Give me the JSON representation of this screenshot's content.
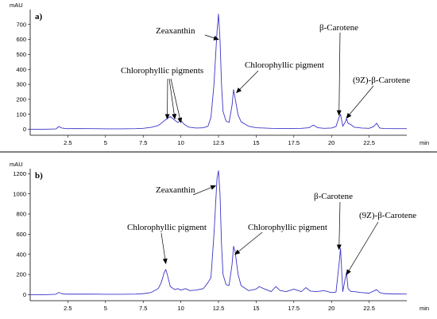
{
  "chart_data": [
    {
      "type": "line",
      "panel_label": "a)",
      "ylabel": "mAU",
      "xlabel": "min",
      "xlim": [
        0,
        25
      ],
      "ylim": [
        -40,
        800
      ],
      "x_ticks": [
        2.5,
        5,
        7.5,
        10,
        12.5,
        15,
        17.5,
        20,
        22.5
      ],
      "x_tick_labels": [
        "2.5",
        "5",
        "7.5",
        "10",
        "12.5",
        "15",
        "17.5",
        "20",
        "22.5"
      ],
      "y_ticks": [
        0,
        100,
        200,
        300,
        400,
        500,
        600,
        700
      ],
      "y_tick_labels": [
        "0",
        "100",
        "200",
        "300",
        "400",
        "500",
        "600",
        "700"
      ],
      "series": [
        {
          "color": "#3b35c8",
          "x": [
            0.0,
            1.0,
            1.7,
            1.9,
            2.1,
            2.4,
            3.0,
            4.0,
            5.0,
            6.0,
            7.0,
            7.5,
            8.0,
            8.5,
            8.8,
            9.0,
            9.3,
            9.6,
            9.8,
            10.0,
            10.2,
            10.5,
            11.0,
            11.5,
            11.8,
            12.0,
            12.2,
            12.4,
            12.5,
            12.6,
            12.7,
            12.8,
            13.0,
            13.2,
            13.4,
            13.5,
            13.6,
            13.8,
            14.0,
            14.5,
            15.0,
            16.0,
            17.0,
            18.0,
            18.5,
            18.8,
            19.1,
            19.5,
            20.0,
            20.3,
            20.5,
            20.6,
            20.75,
            20.9,
            21.0,
            21.1,
            21.3,
            21.5,
            22.0,
            22.5,
            22.8,
            23.0,
            23.2,
            23.5,
            24.0,
            25.0
          ],
          "y": [
            0,
            0,
            2,
            18,
            8,
            4,
            5,
            4,
            3,
            3,
            4,
            6,
            12,
            25,
            48,
            65,
            85,
            60,
            45,
            60,
            35,
            15,
            8,
            10,
            20,
            80,
            300,
            650,
            770,
            600,
            300,
            120,
            55,
            45,
            160,
            265,
            210,
            95,
            50,
            20,
            10,
            6,
            5,
            6,
            10,
            28,
            10,
            6,
            8,
            18,
            80,
            100,
            20,
            45,
            70,
            40,
            30,
            14,
            8,
            6,
            18,
            40,
            8,
            5,
            4,
            4
          ]
        }
      ],
      "annotations": [
        {
          "text": "Zeaxanthin",
          "targets": [
            [
              12.5,
              600
            ]
          ]
        },
        {
          "text": "Chlorophyllic pigments",
          "targets": [
            [
              9.1,
              70
            ],
            [
              9.6,
              70
            ],
            [
              10.0,
              45
            ]
          ]
        },
        {
          "text": "Chlorophyllic pigment",
          "targets": [
            [
              13.7,
              245
            ]
          ]
        },
        {
          "text": "β-Carotene",
          "targets": [
            [
              20.5,
              95
            ]
          ]
        },
        {
          "text": "(9Z)-β-Carotene",
          "targets": [
            [
              21.0,
              75
            ]
          ]
        }
      ]
    },
    {
      "type": "line",
      "panel_label": "b)",
      "ylabel": "mAU",
      "xlabel": "min",
      "xlim": [
        0,
        25
      ],
      "ylim": [
        -60,
        1250
      ],
      "x_ticks": [
        2.5,
        5,
        7.5,
        10,
        12.5,
        15,
        17.5,
        20,
        22.5
      ],
      "x_tick_labels": [
        "2.5",
        "5",
        "7.5",
        "10",
        "12.5",
        "15",
        "17.5",
        "20",
        "22.5"
      ],
      "y_ticks": [
        0,
        200,
        400,
        600,
        800,
        1000,
        1200
      ],
      "y_tick_labels": [
        "0",
        "200",
        "400",
        "600",
        "800",
        "1000",
        "1200"
      ],
      "series": [
        {
          "color": "#3b35c8",
          "x": [
            0.0,
            1.0,
            1.7,
            1.9,
            2.1,
            2.4,
            3.0,
            4.0,
            5.0,
            6.0,
            7.0,
            7.5,
            8.0,
            8.5,
            8.7,
            8.9,
            9.0,
            9.1,
            9.3,
            9.6,
            9.8,
            10.0,
            10.3,
            10.6,
            11.0,
            11.5,
            11.8,
            12.0,
            12.2,
            12.4,
            12.5,
            12.6,
            12.7,
            12.8,
            13.0,
            13.2,
            13.4,
            13.5,
            13.6,
            13.8,
            14.0,
            14.5,
            15.0,
            15.2,
            15.5,
            16.0,
            16.3,
            16.6,
            17.0,
            17.5,
            18.0,
            18.3,
            18.6,
            19.0,
            19.5,
            20.0,
            20.3,
            20.5,
            20.6,
            20.75,
            20.9,
            21.0,
            21.1,
            21.3,
            21.5,
            22.0,
            22.5,
            22.8,
            23.0,
            23.2,
            23.5,
            24.0,
            25.0
          ],
          "y": [
            0,
            0,
            4,
            22,
            10,
            5,
            5,
            5,
            4,
            4,
            6,
            10,
            20,
            60,
            120,
            220,
            250,
            200,
            80,
            50,
            60,
            45,
            60,
            40,
            45,
            60,
            120,
            170,
            600,
            1150,
            1230,
            1000,
            500,
            200,
            100,
            90,
            300,
            480,
            430,
            200,
            90,
            40,
            55,
            80,
            60,
            30,
            80,
            40,
            30,
            55,
            30,
            70,
            35,
            30,
            40,
            20,
            25,
            300,
            460,
            30,
            150,
            220,
            60,
            30,
            30,
            20,
            15,
            35,
            50,
            20,
            10,
            8,
            6
          ]
        }
      ],
      "annotations": [
        {
          "text": "Zeaxanthin",
          "targets": [
            [
              12.3,
              1080
            ]
          ]
        },
        {
          "text": "Chlorophyllic pigment",
          "targets": [
            [
              9.0,
              310
            ]
          ]
        },
        {
          "text": "Chlorophyllic pigment",
          "targets": [
            [
              13.6,
              400
            ]
          ]
        },
        {
          "text": "β-Carotene",
          "targets": [
            [
              20.5,
              450
            ]
          ]
        },
        {
          "text": "(9Z)-β-Carotene",
          "targets": [
            [
              21.0,
              200
            ]
          ]
        }
      ]
    }
  ]
}
